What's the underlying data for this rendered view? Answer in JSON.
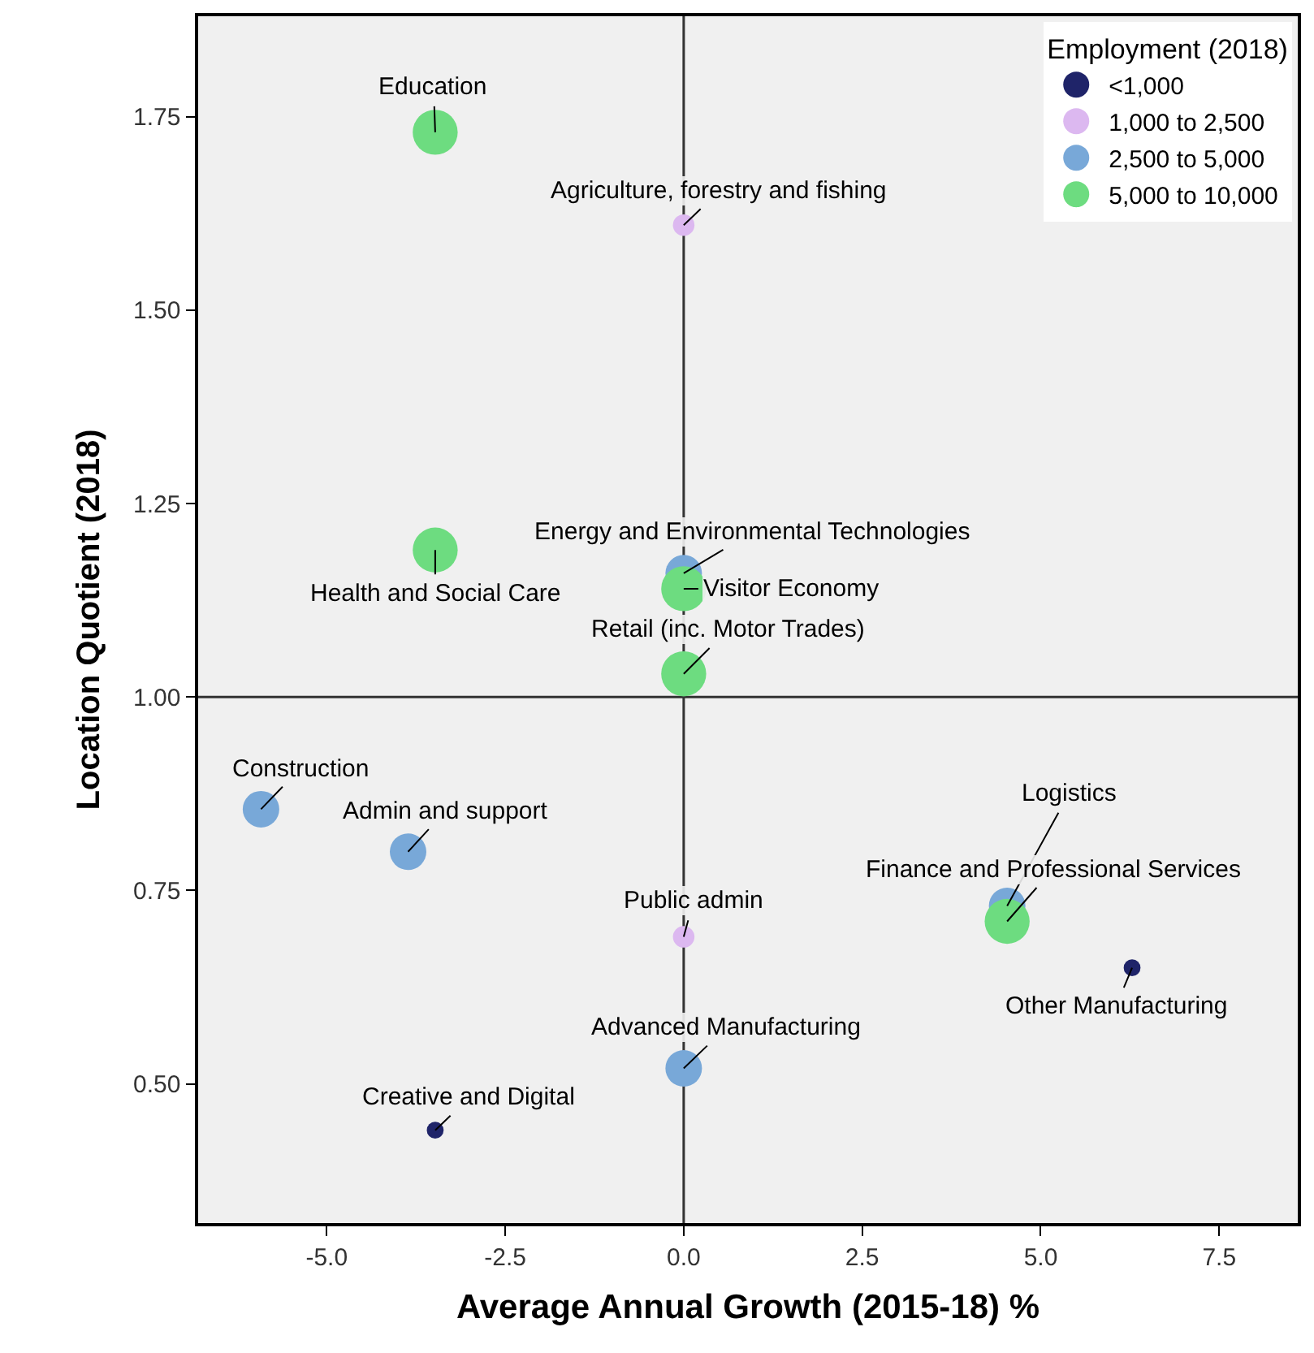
{
  "chart_data": {
    "type": "bubble",
    "xlabel": "Average Annual Growth (2015-18) %",
    "ylabel": "Location Quotient (2018)",
    "legend_title": "Employment (2018)",
    "legend": "top right",
    "grid": false,
    "marker": "circle",
    "xlim": [
      -6.8,
      8.6
    ],
    "ylim": [
      0.32,
      1.88
    ],
    "xticks": [
      {
        "value": -5,
        "label": "-5.0"
      },
      {
        "value": -2.5,
        "label": "-2.5"
      },
      {
        "value": 0,
        "label": "0.0"
      },
      {
        "value": 2.5,
        "label": "2.5"
      },
      {
        "value": 5,
        "label": "5.0"
      },
      {
        "value": 7.5,
        "label": "7.5"
      }
    ],
    "yticks": [
      {
        "value": 0.5,
        "label": "0.50"
      },
      {
        "value": 0.75,
        "label": "0.75"
      },
      {
        "value": 1.0,
        "label": "1.00"
      },
      {
        "value": 1.25,
        "label": "1.25"
      },
      {
        "value": 1.5,
        "label": "1.50"
      },
      {
        "value": 1.75,
        "label": "1.75"
      }
    ],
    "ref_lines": [
      {
        "axis": "x",
        "value": 0,
        "color": "#333333"
      },
      {
        "axis": "y",
        "value": 1.0,
        "color": "#333333"
      }
    ],
    "series": [
      {
        "name": "<1,000",
        "color": "#1f2469",
        "x": [
          6.28,
          -3.48
        ],
        "values": [
          0.65,
          0.44
        ],
        "sizes": [
          0.14,
          0.14
        ]
      },
      {
        "name": "1,000 to 2,500",
        "color": "#dcb8f0",
        "x": [
          0,
          0
        ],
        "values": [
          1.61,
          0.69
        ],
        "sizes": [
          0.23,
          0.23
        ]
      },
      {
        "name": "2,500 to 5,000",
        "color": "#78a8d8",
        "x": [
          0,
          -5.92,
          -3.86,
          4.53,
          0
        ],
        "values": [
          1.16,
          0.855,
          0.8,
          0.73,
          0.52
        ],
        "sizes": [
          0.66,
          0.66,
          0.66,
          0.66,
          0.66
        ]
      },
      {
        "name": "5,000 to 10,000",
        "color": "#6ddc80",
        "x": [
          -3.48,
          -3.48,
          0,
          0,
          4.53
        ],
        "values": [
          1.73,
          1.19,
          1.14,
          1.03,
          0.71
        ],
        "sizes": [
          1,
          1,
          1,
          1,
          1
        ]
      }
    ],
    "annotations": [
      {
        "text": "Education",
        "x": -3.48,
        "y": 1.73
      },
      {
        "text": "Agriculture, forestry and fishing",
        "x": 0,
        "y": 1.61
      },
      {
        "text": "Energy and Environmental Technologies",
        "x": 0,
        "y": 1.16
      },
      {
        "text": "Health and Social Care",
        "x": -3.48,
        "y": 1.19
      },
      {
        "text": "Visitor Economy",
        "x": 0,
        "y": 1.14
      },
      {
        "text": "Retail (inc. Motor Trades)",
        "x": 0,
        "y": 1.03
      },
      {
        "text": "Construction",
        "x": -5.92,
        "y": 0.855
      },
      {
        "text": "Admin and support",
        "x": -3.86,
        "y": 0.8
      },
      {
        "text": "Public admin",
        "x": 0,
        "y": 0.69
      },
      {
        "text": "Logistics",
        "x": 4.53,
        "y": 0.73
      },
      {
        "text": "Finance and Professional Services",
        "x": 4.53,
        "y": 0.71
      },
      {
        "text": "Other Manufacturing",
        "x": 6.28,
        "y": 0.65
      },
      {
        "text": "Advanced Manufacturing",
        "x": 0,
        "y": 0.52
      },
      {
        "text": "Creative and Digital",
        "x": -3.48,
        "y": 0.44
      }
    ]
  }
}
